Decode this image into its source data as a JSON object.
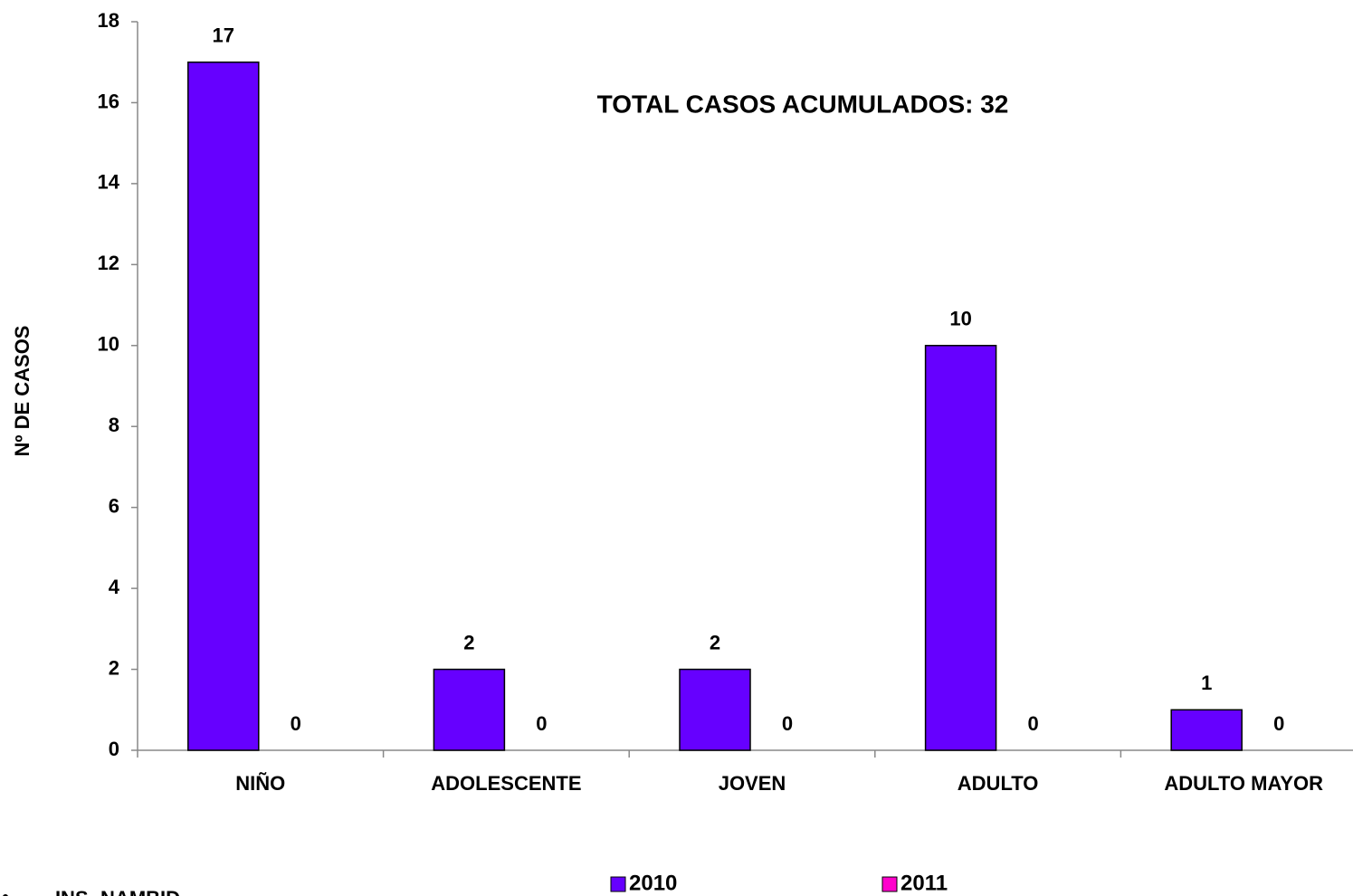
{
  "chart_data": {
    "type": "bar",
    "ylabel": "Nº DE CASOS",
    "annotation": "TOTAL CASOS ACUMULADOS: 32",
    "source": "INS- NAMBID",
    "categories": [
      "NIÑO",
      "ADOLESCENTE",
      "JOVEN",
      "ADULTO",
      "ADULTO MAYOR"
    ],
    "series": [
      {
        "name": "2010",
        "color": "#6600ff",
        "values": [
          17,
          2,
          2,
          10,
          1
        ]
      },
      {
        "name": "2011",
        "color": "#ff00cc",
        "values": [
          0,
          0,
          0,
          0,
          0
        ]
      }
    ],
    "ylim": [
      0,
      18
    ],
    "yticks": [
      0,
      2,
      4,
      6,
      8,
      10,
      12,
      14,
      16,
      18
    ],
    "legend": "bottom"
  }
}
